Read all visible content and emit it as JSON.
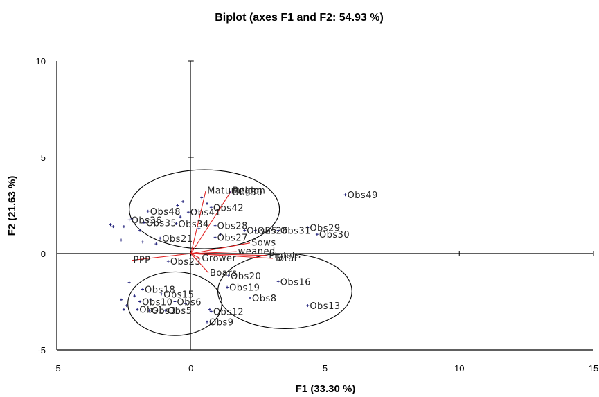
{
  "chart_data": {
    "type": "scatter",
    "title": "Biplot (axes F1 and F2: 54.93 %)",
    "xlabel": "F1 (33.30 %)",
    "ylabel": "F2 (21.63 %)",
    "xlim": [
      -5,
      15
    ],
    "ylim": [
      -5,
      10
    ],
    "xticks": [
      -5,
      0,
      5,
      10,
      15
    ],
    "yticks": [
      -5,
      0,
      5,
      10
    ],
    "grid": false,
    "colors": {
      "observation": "#1f1f7a",
      "variable": "#e02020",
      "axis": "#000000"
    },
    "observations": [
      {
        "label": "Obs49",
        "x": 5.75,
        "y": 3.05
      },
      {
        "label": "Obs29",
        "x": 4.35,
        "y": 1.35
      },
      {
        "label": "Obs30",
        "x": 4.7,
        "y": 1.0
      },
      {
        "label": "Obs31",
        "x": 3.25,
        "y": 1.2
      },
      {
        "label": "Obs26",
        "x": 2.4,
        "y": 1.2
      },
      {
        "label": "Obs25",
        "x": 2.0,
        "y": 1.2
      },
      {
        "label": "Obs28",
        "x": 0.9,
        "y": 1.45
      },
      {
        "label": "Obs27",
        "x": 0.9,
        "y": 0.85
      },
      {
        "label": "Obs50",
        "x": 1.45,
        "y": 3.2
      },
      {
        "label": "Obs42",
        "x": 0.75,
        "y": 2.4
      },
      {
        "label": "Obs41",
        "x": -0.1,
        "y": 2.15
      },
      {
        "label": "Obs48",
        "x": -1.6,
        "y": 2.2
      },
      {
        "label": "Obs21",
        "x": -1.15,
        "y": 0.8
      },
      {
        "label": "Obs34",
        "x": -0.55,
        "y": 1.55
      },
      {
        "label": "Obs35",
        "x": -1.75,
        "y": 1.6
      },
      {
        "label": "Obs36",
        "x": -2.3,
        "y": 1.75
      },
      {
        "label": "Obs23",
        "x": -0.85,
        "y": -0.4
      },
      {
        "label": "Obs20",
        "x": 1.4,
        "y": -1.15
      },
      {
        "label": "Obs19",
        "x": 1.35,
        "y": -1.75
      },
      {
        "label": "Obs16",
        "x": 3.25,
        "y": -1.45
      },
      {
        "label": "Obs8",
        "x": 2.2,
        "y": -2.3
      },
      {
        "label": "Obs13",
        "x": 4.35,
        "y": -2.7
      },
      {
        "label": "Obs12",
        "x": 0.75,
        "y": -3.0
      },
      {
        "label": "Obs9",
        "x": 0.6,
        "y": -3.55
      },
      {
        "label": "Obs18",
        "x": -1.8,
        "y": -1.85
      },
      {
        "label": "Obs15",
        "x": -1.1,
        "y": -2.1
      },
      {
        "label": "Obs6",
        "x": -0.6,
        "y": -2.5
      },
      {
        "label": "Obs10",
        "x": -1.9,
        "y": -2.5
      },
      {
        "label": "Obs3",
        "x": -1.55,
        "y": -2.95
      },
      {
        "label": "Obs5",
        "x": -0.95,
        "y": -2.95
      },
      {
        "label": "Obs1",
        "x": -2.0,
        "y": -2.9
      }
    ],
    "extra_points": [
      [
        -3.0,
        1.5
      ],
      [
        -2.9,
        1.4
      ],
      [
        -2.5,
        1.4
      ],
      [
        -2.2,
        1.8
      ],
      [
        -1.9,
        1.2
      ],
      [
        -2.6,
        0.7
      ],
      [
        -1.8,
        0.6
      ],
      [
        -1.3,
        0.5
      ],
      [
        -0.5,
        2.5
      ],
      [
        -0.3,
        2.7
      ],
      [
        0.4,
        2.9
      ],
      [
        0.6,
        2.6
      ],
      [
        0.2,
        2.2
      ],
      [
        -0.4,
        1.9
      ],
      [
        0.3,
        1.3
      ],
      [
        1.1,
        1.0
      ],
      [
        -2.3,
        -1.5
      ],
      [
        -2.6,
        -2.4
      ],
      [
        -2.4,
        -2.7
      ],
      [
        -2.1,
        -2.2
      ],
      [
        -2.5,
        -2.9
      ],
      [
        -0.2,
        -2.6
      ],
      [
        -1.5,
        -2.4
      ],
      [
        0.7,
        -2.9
      ]
    ],
    "variables": [
      {
        "label": "Maturation",
        "x": 0.55,
        "y": 3.25
      },
      {
        "label": "Region",
        "x": 1.5,
        "y": 3.25
      },
      {
        "label": "Sows",
        "x": 2.2,
        "y": 0.55
      },
      {
        "label": "weaned",
        "x": 1.7,
        "y": 0.1
      },
      {
        "label": "Piglets",
        "x": 2.85,
        "y": -0.1
      },
      {
        "label": "Total",
        "x": 3.05,
        "y": -0.25
      },
      {
        "label": "Grower",
        "x": 0.35,
        "y": -0.25
      },
      {
        "label": "PPP",
        "x": -2.2,
        "y": -0.35
      },
      {
        "label": "Boars",
        "x": 0.65,
        "y": -1.0
      }
    ],
    "ellipses": [
      {
        "center": [
          0.5,
          2.3
        ],
        "radii": [
          2.8,
          2.05
        ]
      },
      {
        "center": [
          -0.6,
          -2.6
        ],
        "radii": [
          1.75,
          1.65
        ]
      },
      {
        "center": [
          3.5,
          -1.95
        ],
        "radii": [
          2.5,
          1.95
        ]
      }
    ]
  }
}
